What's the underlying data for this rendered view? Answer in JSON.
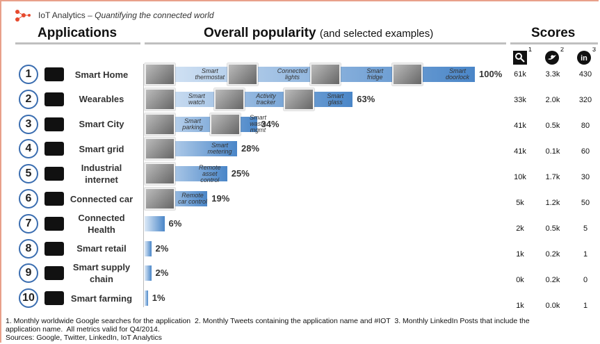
{
  "header": {
    "brand": "IoT Analytics",
    "tagline": "– Quantifying the connected world"
  },
  "headings": {
    "applications": "Applications",
    "popularity": "Overall popularity",
    "popularity_note": "(and selected examples)",
    "scores": "Scores"
  },
  "chart_data": {
    "type": "bar",
    "orientation": "horizontal",
    "categories": [
      "Smart Home",
      "Wearables",
      "Smart City",
      "Smart grid",
      "Industrial internet",
      "Connected car",
      "Connected Health",
      "Smart retail",
      "Smart supply chain",
      "Smart farming"
    ],
    "ranks": [
      1,
      2,
      3,
      4,
      5,
      6,
      7,
      8,
      9,
      10
    ],
    "values": [
      100,
      63,
      34,
      28,
      25,
      19,
      6,
      2,
      2,
      1
    ],
    "value_labels": [
      "100%",
      "63%",
      "34%",
      "28%",
      "25%",
      "19%",
      "6%",
      "2%",
      "2%",
      "1%"
    ],
    "xlim": [
      0,
      100
    ],
    "color_start": "#dce9f7",
    "color_end": "#4a86c8",
    "examples": [
      [
        "Smart thermostat",
        "Connected lights",
        "Smart fridge",
        "Smart doorlock"
      ],
      [
        "Smart watch",
        "Activity tracker",
        "Smart glass"
      ],
      [
        "Smart parking",
        "Smart waste mgmt"
      ],
      [
        "Smart metering"
      ],
      [
        "Remote asset control"
      ],
      [
        "Remote car control"
      ],
      [],
      [],
      [],
      []
    ]
  },
  "scores": {
    "footnote_marks": [
      1,
      2,
      3
    ],
    "google": [
      "61k",
      "33k",
      "41k",
      "41k",
      "10k",
      "5k",
      "2k",
      "1k",
      "0k",
      "1k"
    ],
    "twitter": [
      "3.3k",
      "2.0k",
      "0.5k",
      "0.1k",
      "1.7k",
      "1.2k",
      "0.5k",
      "0.2k",
      "0.2k",
      "0.0k"
    ],
    "linkedin": [
      430,
      320,
      80,
      60,
      30,
      50,
      5,
      1,
      0,
      1
    ]
  },
  "footnotes": [
    "1. Monthly worldwide Google searches for the application  2. Monthly Tweets containing the application name and #IOT  3. Monthly LinkedIn Posts that include the",
    "application name.  All metrics valid for Q4/2014."
  ],
  "sources": "Sources: Google, Twitter, LinkedIn, IoT Analytics"
}
